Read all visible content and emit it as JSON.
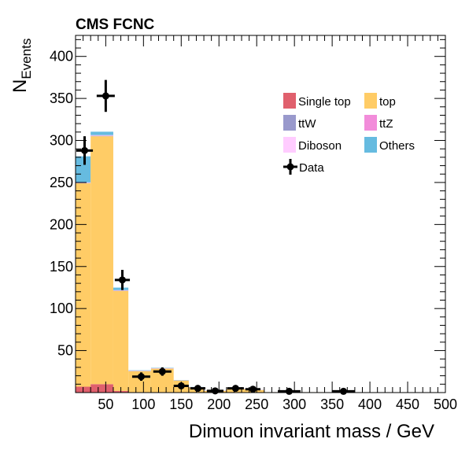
{
  "chart_data": {
    "type": "bar",
    "stacked": true,
    "title": "CMS FCNC",
    "xlabel": "Dimuon invariant mass / GeV",
    "ylabel_main": "N",
    "ylabel_sub": "Events",
    "xlim": [
      10,
      500
    ],
    "ylim": [
      0,
      425
    ],
    "xticks": [
      50,
      100,
      150,
      200,
      250,
      300,
      350,
      400,
      450,
      500
    ],
    "yticks": [
      50,
      100,
      150,
      200,
      250,
      300,
      350,
      400
    ],
    "bin_edges": [
      10,
      30,
      60,
      80,
      110,
      140,
      160,
      180,
      210,
      240,
      260,
      340,
      400
    ],
    "series": [
      {
        "name": "Single top",
        "color": "#e0606d",
        "values": [
          7,
          10,
          2,
          0.5,
          0.5,
          0.3,
          0.2,
          0.1,
          0.1,
          0.1,
          0,
          0
        ]
      },
      {
        "name": "top",
        "color": "#ffcc66",
        "values": [
          242,
          295,
          119,
          25,
          28,
          14,
          6,
          2,
          4,
          3,
          0.5,
          0.3
        ]
      },
      {
        "name": "ttW",
        "color": "#9999cc",
        "values": [
          0.3,
          0.5,
          0.3,
          0.2,
          0.2,
          0.1,
          0.1,
          0.1,
          0.1,
          0.1,
          0,
          0
        ]
      },
      {
        "name": "ttZ",
        "color": "#f28cda",
        "values": [
          0.3,
          0.4,
          0.3,
          0.2,
          0.2,
          0.1,
          0.1,
          0.1,
          0.1,
          0.1,
          0,
          0
        ]
      },
      {
        "name": "Diboson",
        "color": "#ffccff",
        "values": [
          0.5,
          0.5,
          0.3,
          0.2,
          0.2,
          0.1,
          0.1,
          0.1,
          0.1,
          0.1,
          0,
          0
        ]
      },
      {
        "name": "Others",
        "color": "#66bbe0",
        "values": [
          31,
          4,
          3,
          0.4,
          0.4,
          0.3,
          0.2,
          0.1,
          0.1,
          0.1,
          0,
          0
        ]
      }
    ],
    "data_points": {
      "name": "Data",
      "x": [
        22,
        50,
        72,
        97,
        125,
        150,
        172,
        195,
        222,
        245,
        293,
        365
      ],
      "y": [
        288,
        353,
        134,
        19,
        25,
        8,
        5,
        2,
        5,
        4,
        1.5,
        1.5
      ],
      "xerr": [
        11,
        12,
        10,
        12,
        12,
        10,
        10,
        11,
        11,
        10,
        15,
        15
      ],
      "yerr": [
        17,
        19,
        12,
        5,
        5,
        3,
        2.5,
        1.5,
        2.5,
        2,
        1.2,
        1.2
      ]
    },
    "legend": {
      "position": "top-right",
      "entries": [
        "Single top",
        "top",
        "ttW",
        "ttZ",
        "Diboson",
        "Others",
        "Data"
      ]
    },
    "grid": false
  }
}
